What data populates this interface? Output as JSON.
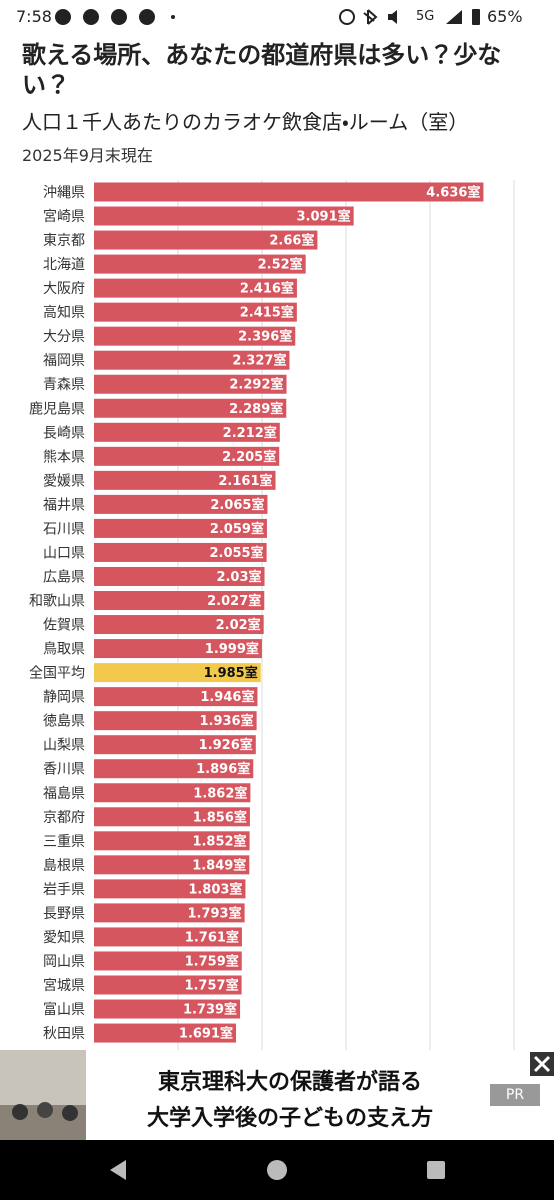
{
  "status_bar": {
    "time": "7:58",
    "network": "5G",
    "battery": "65%"
  },
  "chart_data": {
    "type": "bar",
    "orientation": "horizontal",
    "title": "歌える場所、あなたの都道府県は多い？少ない？",
    "subtitle": "人口１千人あたりのカラオケ飲食店・ルーム（室）",
    "note": "2025年9月末現在",
    "categories": [
      "沖縄県",
      "宮崎県",
      "東京都",
      "北海道",
      "大阪府",
      "高知県",
      "大分県",
      "福岡県",
      "青森県",
      "鹿児島県",
      "長崎県",
      "熊本県",
      "愛媛県",
      "福井県",
      "石川県",
      "山口県",
      "広島県",
      "和歌山県",
      "佐賀県",
      "鳥取県",
      "全国平均",
      "静岡県",
      "徳島県",
      "山梨県",
      "香川県",
      "福島県",
      "京都府",
      "三重県",
      "島根県",
      "岩手県",
      "長野県",
      "愛知県",
      "岡山県",
      "宮城県",
      "富山県",
      "秋田県"
    ],
    "values": [
      4.636,
      3.091,
      2.66,
      2.52,
      2.416,
      2.415,
      2.396,
      2.327,
      2.292,
      2.289,
      2.212,
      2.205,
      2.161,
      2.065,
      2.059,
      2.055,
      2.03,
      2.027,
      2.02,
      1.999,
      1.985,
      1.946,
      1.936,
      1.926,
      1.896,
      1.862,
      1.856,
      1.852,
      1.849,
      1.803,
      1.793,
      1.761,
      1.759,
      1.757,
      1.739,
      1.691
    ],
    "value_labels": [
      "4.636室",
      "3.091室",
      "2.66室",
      "2.52室",
      "2.416室",
      "2.415室",
      "2.396室",
      "2.327室",
      "2.292室",
      "2.289室",
      "2.212室",
      "2.205室",
      "2.161室",
      "2.065室",
      "2.059室",
      "2.055室",
      "2.03室",
      "2.027室",
      "2.02室",
      "1.999室",
      "1.985室",
      "1.946室",
      "1.936室",
      "1.926室",
      "1.896室",
      "1.862室",
      "1.856室",
      "1.852室",
      "1.849室",
      "1.803室",
      "1.793室",
      "1.761室",
      "1.759室",
      "1.757室",
      "1.739室",
      "1.691室"
    ],
    "colors": [
      "#d65660",
      "#d65660",
      "#d65660",
      "#d65660",
      "#d65660",
      "#d65660",
      "#d65660",
      "#d65660",
      "#d65660",
      "#d65660",
      "#d65660",
      "#d65660",
      "#d65660",
      "#d65660",
      "#d65660",
      "#d65660",
      "#d65660",
      "#d65660",
      "#d65660",
      "#d65660",
      "#f2c94c",
      "#d65660",
      "#d65660",
      "#d65660",
      "#d65660",
      "#d65660",
      "#d65660",
      "#d65660",
      "#d65660",
      "#d65660",
      "#d65660",
      "#d65660",
      "#d65660",
      "#d65660",
      "#d65660",
      "#d65660"
    ],
    "xlim": [
      0,
      5
    ],
    "xticks": [
      1,
      2,
      3,
      4,
      5
    ],
    "grid": true
  },
  "ad": {
    "line1": "東京理科大の保護者が語る",
    "line2": "大学入学後の子どもの支え方",
    "badge": "PR"
  }
}
